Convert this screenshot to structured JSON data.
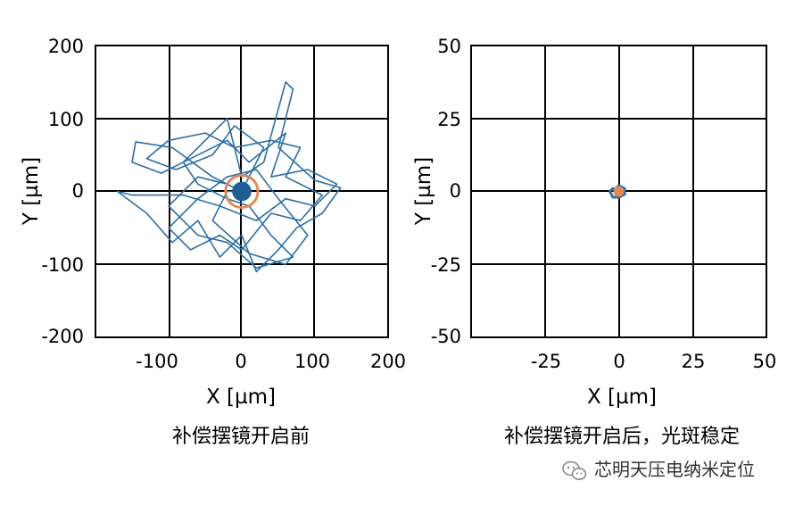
{
  "chart_data": [
    {
      "type": "scatter",
      "xlabel": "X [µm]",
      "ylabel": "Y [µm]",
      "xlim": [
        -200,
        200
      ],
      "ylim": [
        -200,
        200
      ],
      "x_ticks": [
        "-100",
        "0",
        "100",
        "200"
      ],
      "y_ticks": [
        "200",
        "100",
        "0",
        "-100",
        "-200"
      ],
      "grid": true,
      "caption": "补偿摆镜开启前",
      "trace_color": "#2d6ea3",
      "marker_color": "#e08a5a",
      "trace_xy": [
        [
          0,
          0
        ],
        [
          -40,
          20
        ],
        [
          -95,
          60
        ],
        [
          -145,
          68
        ],
        [
          -150,
          40
        ],
        [
          -110,
          25
        ],
        [
          -70,
          45
        ],
        [
          -20,
          70
        ],
        [
          10,
          40
        ],
        [
          60,
          80
        ],
        [
          40,
          20
        ],
        [
          90,
          30
        ],
        [
          130,
          10
        ],
        [
          100,
          -20
        ],
        [
          60,
          -10
        ],
        [
          20,
          -40
        ],
        [
          -30,
          -20
        ],
        [
          -80,
          -5
        ],
        [
          -150,
          -5
        ],
        [
          -170,
          0
        ],
        [
          -130,
          -30
        ],
        [
          -95,
          -70
        ],
        [
          -60,
          -40
        ],
        [
          -30,
          -90
        ],
        [
          0,
          -60
        ],
        [
          20,
          -110
        ],
        [
          50,
          -80
        ],
        [
          75,
          -50
        ],
        [
          110,
          -30
        ],
        [
          135,
          5
        ],
        [
          100,
          15
        ],
        [
          50,
          60
        ],
        [
          70,
          140
        ],
        [
          60,
          150
        ],
        [
          30,
          40
        ],
        [
          0,
          20
        ],
        [
          -20,
          100
        ],
        [
          -50,
          70
        ],
        [
          -80,
          40
        ],
        [
          -60,
          10
        ],
        [
          -20,
          -10
        ],
        [
          10,
          -20
        ],
        [
          40,
          -60
        ],
        [
          70,
          -90
        ],
        [
          20,
          -105
        ],
        [
          -20,
          -70
        ],
        [
          -60,
          -60
        ],
        [
          -100,
          -20
        ],
        [
          -60,
          20
        ],
        [
          -20,
          10
        ],
        [
          0,
          0
        ]
      ],
      "trace_xy_2": [
        [
          0,
          0
        ],
        [
          30,
          60
        ],
        [
          -10,
          90
        ],
        [
          -40,
          50
        ],
        [
          -90,
          30
        ],
        [
          -130,
          45
        ],
        [
          -100,
          70
        ],
        [
          -50,
          80
        ],
        [
          -10,
          60
        ],
        [
          40,
          70
        ],
        [
          80,
          60
        ],
        [
          60,
          20
        ],
        [
          110,
          -5
        ],
        [
          80,
          -40
        ],
        [
          40,
          -30
        ],
        [
          0,
          -80
        ],
        [
          -30,
          -60
        ],
        [
          -70,
          -80
        ],
        [
          -100,
          -50
        ],
        [
          -60,
          -10
        ],
        [
          -20,
          20
        ],
        [
          20,
          30
        ],
        [
          50,
          -10
        ],
        [
          90,
          -60
        ],
        [
          60,
          -100
        ],
        [
          10,
          -85
        ],
        [
          -40,
          -40
        ],
        [
          -20,
          0
        ],
        [
          0,
          0
        ]
      ],
      "marker": {
        "x": 0,
        "y": 0,
        "radius": 22
      }
    },
    {
      "type": "scatter",
      "xlabel": "X [µm]",
      "ylabel": "Y [µm]",
      "xlim": [
        -50,
        50
      ],
      "ylim": [
        -50,
        50
      ],
      "x_ticks": [
        "-25",
        "0",
        "25",
        "50"
      ],
      "y_ticks": [
        "50",
        "25",
        "0",
        "-25",
        "-50"
      ],
      "grid": true,
      "caption": "补偿摆镜开启后，光斑稳定",
      "trace_color": "#2d6ea3",
      "marker_color": "#e08a5a",
      "trace_xy": [
        [
          0,
          0
        ],
        [
          -2,
          1
        ],
        [
          -3,
          0
        ],
        [
          -2,
          -2
        ],
        [
          0,
          -2
        ],
        [
          2,
          -1
        ],
        [
          2,
          1
        ],
        [
          0,
          2
        ],
        [
          -1,
          1
        ],
        [
          0,
          0
        ]
      ],
      "marker": {
        "x": 0,
        "y": 0,
        "radius": 1.8
      }
    }
  ],
  "watermark": {
    "icon": "wechat-icon",
    "text": "芯明天压电纳米定位"
  }
}
